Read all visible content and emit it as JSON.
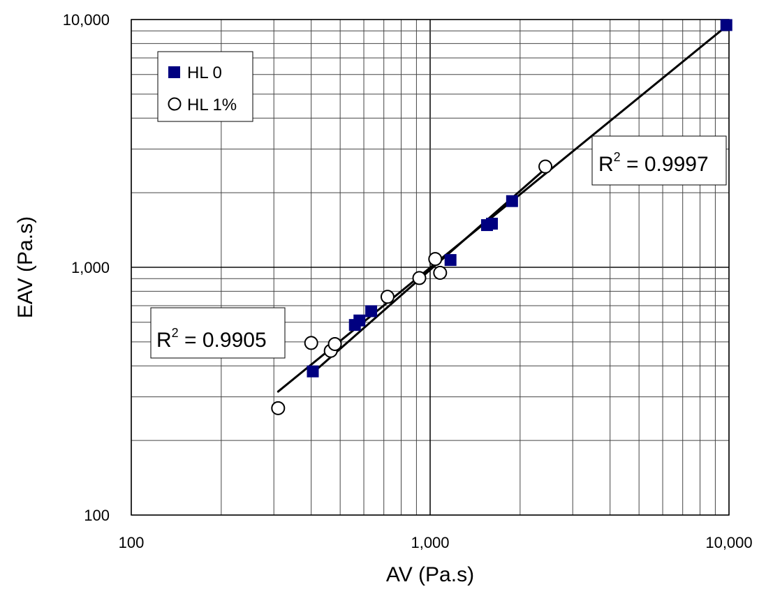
{
  "chart_data": {
    "type": "scatter",
    "title": "",
    "xlabel": "AV (Pa.s)",
    "ylabel": "EAV (Pa.s)",
    "xscale": "log",
    "yscale": "log",
    "xlim": [
      100,
      10000
    ],
    "ylim": [
      100,
      10000
    ],
    "x_ticks": [
      100,
      1000,
      10000
    ],
    "x_tick_labels": [
      "100",
      "1,000",
      "10,000"
    ],
    "y_ticks": [
      100,
      1000,
      10000
    ],
    "y_tick_labels": [
      "100",
      "1,000",
      "10,000"
    ],
    "grid": true,
    "legend_position": "top-left",
    "series": [
      {
        "name": "HL 0",
        "marker": "filled-square",
        "color": "#000080",
        "points": [
          [
            405,
            380
          ],
          [
            560,
            585
          ],
          [
            580,
            610
          ],
          [
            635,
            665
          ],
          [
            1170,
            1070
          ],
          [
            1550,
            1480
          ],
          [
            1610,
            1500
          ],
          [
            1880,
            1850
          ],
          [
            9800,
            9500
          ]
        ]
      },
      {
        "name": "HL 1%",
        "marker": "open-circle",
        "color": "#000000",
        "points": [
          [
            310,
            270
          ],
          [
            400,
            495
          ],
          [
            465,
            460
          ],
          [
            480,
            490
          ],
          [
            720,
            760
          ],
          [
            920,
            905
          ],
          [
            1040,
            1080
          ],
          [
            1080,
            950
          ],
          [
            2430,
            2550
          ]
        ]
      }
    ],
    "trendlines": [
      {
        "x": [
          310,
          9800
        ],
        "y": [
          315,
          9400
        ]
      },
      {
        "x": [
          400,
          2430
        ],
        "y": [
          370,
          2500
        ]
      }
    ],
    "annotations": [
      {
        "base": "R",
        "sup": "2",
        "rest": " = 0.9997"
      },
      {
        "base": "R",
        "sup": "2",
        "rest": " = 0.9905"
      }
    ]
  }
}
